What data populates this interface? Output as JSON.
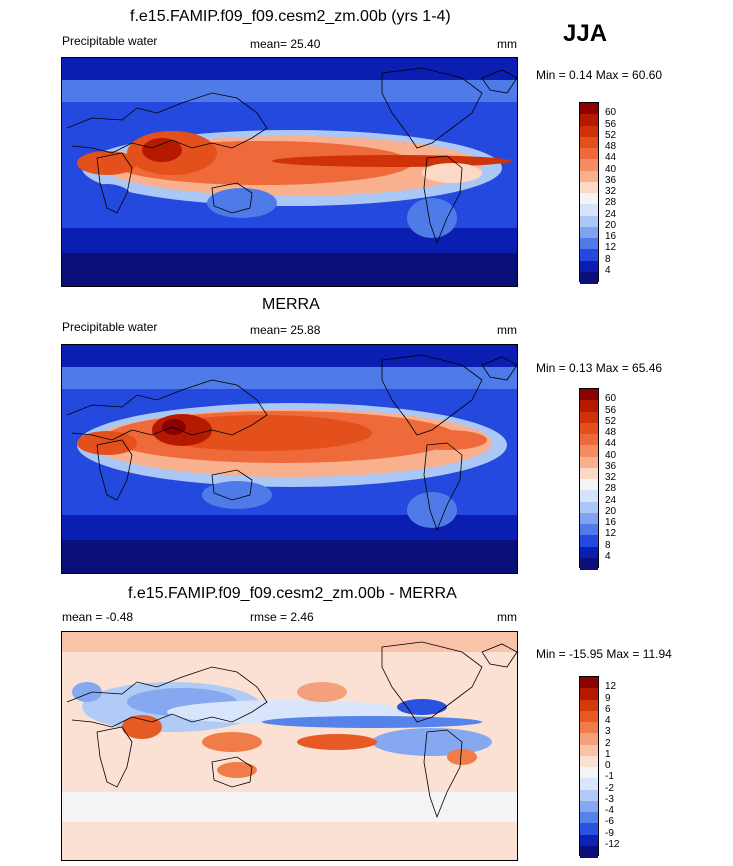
{
  "season": "JJA",
  "units": "mm",
  "panels": [
    {
      "title": "f.e15.FAMIP.f09_f09.cesm2_zm.00b (yrs 1-4)",
      "left_label": "Precipitable water",
      "stat": "mean=  25.40",
      "units": "mm",
      "minmax": "Min =   0.14 Max =  60.60",
      "colorbar": {
        "levels": [
          "60",
          "56",
          "52",
          "48",
          "44",
          "40",
          "36",
          "32",
          "28",
          "24",
          "20",
          "16",
          "12",
          "8",
          "4"
        ],
        "colors": [
          "#8b0000",
          "#b51a00",
          "#cf3208",
          "#e4501c",
          "#ef6a3a",
          "#f58d63",
          "#f8b08f",
          "#fcd9c4",
          "#f4f4f4",
          "#d6e3fb",
          "#abc7f5",
          "#7fa3f0",
          "#4f7be8",
          "#2449de",
          "#0a1fb2",
          "#0a0f7a"
        ]
      }
    },
    {
      "title": "MERRA",
      "left_label": "Precipitable water",
      "stat": "mean=  25.88",
      "units": "mm",
      "minmax": "Min =   0.13 Max =  65.46",
      "colorbar": {
        "levels": [
          "60",
          "56",
          "52",
          "48",
          "44",
          "40",
          "36",
          "32",
          "28",
          "24",
          "20",
          "16",
          "12",
          "8",
          "4"
        ],
        "colors": [
          "#8b0000",
          "#b51a00",
          "#cf3208",
          "#e4501c",
          "#ef6a3a",
          "#f58d63",
          "#f8b08f",
          "#fcd9c4",
          "#f4f4f4",
          "#d6e3fb",
          "#abc7f5",
          "#7fa3f0",
          "#4f7be8",
          "#2449de",
          "#0a1fb2",
          "#0a0f7a"
        ]
      }
    },
    {
      "title": "f.e15.FAMIP.f09_f09.cesm2_zm.00b - MERRA",
      "left_label": "mean =  -0.48",
      "stat": "rmse =   2.46",
      "units": "mm",
      "minmax": "Min = -15.95 Max =  11.94",
      "colorbar": {
        "levels": [
          "12",
          "9",
          "6",
          "4",
          "3",
          "2",
          "1",
          "0",
          "-1",
          "-2",
          "-3",
          "-4",
          "-6",
          "-9",
          "-12"
        ],
        "colors": [
          "#8b0000",
          "#b51a00",
          "#d23a0c",
          "#e85a24",
          "#f07c48",
          "#f5a07c",
          "#f9c3a8",
          "#fbe1d4",
          "#f4f4f4",
          "#d9e5fb",
          "#b1cbf6",
          "#86a8f1",
          "#5683ea",
          "#2a52e0",
          "#0b24b8",
          "#0a0f7a"
        ]
      }
    }
  ]
}
